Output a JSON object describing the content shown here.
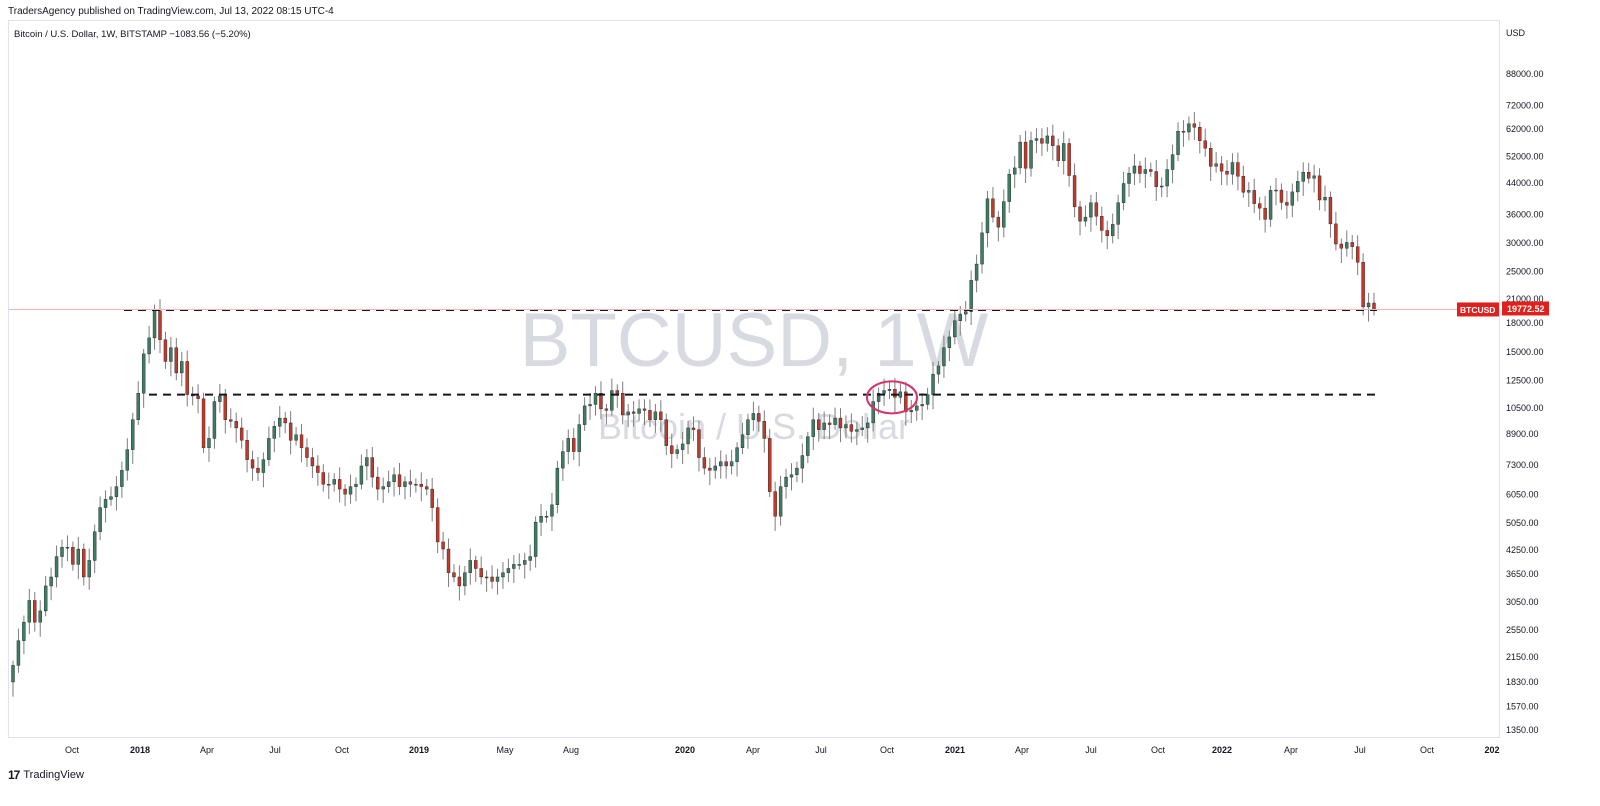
{
  "header": {
    "published_text": "TradersAgency published on TradingView.com, Jul 13, 2022 08:15 UTC-4"
  },
  "symbol": {
    "line": "Bitcoin / U.S. Dollar, 1W, BITSTAMP  −1083.56 (−5.20%)"
  },
  "watermark": {
    "ticker": "BTCUSD, 1W",
    "name": "Bitcoin / U.S. Dollar"
  },
  "price_scale": {
    "currency": "USD",
    "ticks": [
      "88000.00",
      "72000.00",
      "62000.00",
      "52000.00",
      "44000.00",
      "36000.00",
      "30000.00",
      "25000.00",
      "21000.00",
      "18000.00",
      "15000.00",
      "12500.00",
      "10500.00",
      "8900.00",
      "7300.00",
      "6050.00",
      "5050.00",
      "4250.00",
      "3650.00",
      "3050.00",
      "2550.00",
      "2150.00",
      "1830.00",
      "1570.00",
      "1350.00"
    ],
    "last_label": "BTCUSD",
    "last_price": "19772.52"
  },
  "time_scale": {
    "labels": [
      "Oct",
      "2018",
      "Apr",
      "Jul",
      "Oct",
      "2019",
      "May",
      "Aug",
      "2020",
      "Apr",
      "Jul",
      "Oct",
      "2021",
      "Apr",
      "Jul",
      "Oct",
      "2022",
      "Apr",
      "Jul",
      "Oct",
      "202"
    ]
  },
  "footer": {
    "brand": "TradingView"
  },
  "colors": {
    "up": "#3e7d63",
    "down": "#c0392b",
    "wick": "#7d7d7d",
    "line": "#131722",
    "marker": "#d6336c",
    "last": "#e0201c"
  },
  "chart_data": {
    "type": "candlestick",
    "title": "Bitcoin / U.S. Dollar, 1W, BITSTAMP",
    "y_scale": "log",
    "ylim": [
      1250,
      100000
    ],
    "horizontal_lines": [
      19700,
      11500
    ],
    "last_price": 19772.52,
    "series": [
      {
        "name": "BTCUSD",
        "close": [
          2050,
          2400,
          2700,
          3100,
          2700,
          2900,
          3400,
          3600,
          4100,
          4350,
          4350,
          3900,
          4300,
          3600,
          4000,
          4800,
          5600,
          5900,
          6000,
          6400,
          7100,
          8100,
          9800,
          11600,
          14900,
          16500,
          19600,
          16300,
          14200,
          15500,
          13200,
          14200,
          11500,
          11400,
          11200,
          8200,
          8700,
          11000,
          11400,
          9800,
          9700,
          9300,
          8600,
          7600,
          7200,
          7000,
          7600,
          8700,
          9400,
          9900,
          9600,
          8600,
          8900,
          8200,
          7700,
          7300,
          7000,
          6500,
          6500,
          6700,
          6300,
          6100,
          6400,
          6500,
          7300,
          7700,
          6800,
          6300,
          6400,
          6600,
          6900,
          6400,
          6600,
          6500,
          6500,
          6400,
          6300,
          5600,
          4500,
          4300,
          3700,
          3600,
          3400,
          3700,
          4000,
          3800,
          3600,
          3600,
          3500,
          3600,
          3700,
          3800,
          3900,
          3900,
          4000,
          4100,
          5100,
          5300,
          5300,
          5700,
          7200,
          8000,
          8700,
          8000,
          9500,
          10700,
          10800,
          11600,
          10500,
          10400,
          11800,
          11600,
          10100,
          10300,
          10200,
          10500,
          10400,
          9800,
          10300,
          9800,
          8300,
          7900,
          8100,
          8400,
          9300,
          9200,
          7700,
          7200,
          7100,
          7300,
          7500,
          7300,
          7500,
          8200,
          8900,
          9800,
          10200,
          9700,
          8700,
          6200,
          5300,
          6400,
          6800,
          6900,
          7200,
          7800,
          8800,
          9800,
          9200,
          9600,
          9500,
          9900,
          9300,
          9500,
          9100,
          9200,
          9300,
          9600,
          11000,
          11600,
          11800,
          11900,
          11300,
          11700,
          10300,
          10400,
          10700,
          10800,
          11500,
          13100,
          13800,
          15500,
          16600,
          18400,
          19200,
          19500,
          23800,
          26400,
          32200,
          40000,
          35600,
          33400,
          39300,
          46800,
          48700,
          57400,
          48600,
          58000,
          58700,
          57000,
          59700,
          56100,
          51000,
          56900,
          46400,
          38000,
          34700,
          35600,
          39000,
          35800,
          32700,
          31600,
          34000,
          39000,
          44100,
          47100,
          49300,
          47000,
          48200,
          47600,
          43200,
          43400,
          48200,
          53000,
          61500,
          61200,
          64500,
          63100,
          57900,
          55200,
          49200,
          50000,
          47700,
          46800,
          50400,
          46200,
          41700,
          42200,
          38800,
          37700,
          35100,
          42200,
          42300,
          39100,
          38400,
          41800,
          44700,
          47400,
          45600,
          46300,
          39700,
          40400,
          34100,
          30000,
          29200,
          30300,
          29500,
          26700,
          20100,
          20600,
          19800
        ]
      }
    ],
    "x_labels": [
      "Oct",
      "2018",
      "Apr",
      "Jul",
      "Oct",
      "2019",
      "May",
      "Aug",
      "2020",
      "Apr",
      "Jul",
      "Oct",
      "2021",
      "Apr",
      "Jul",
      "Oct",
      "2022",
      "Apr",
      "Jul",
      "Oct",
      "202"
    ],
    "xlabel": "",
    "ylabel": "USD"
  }
}
